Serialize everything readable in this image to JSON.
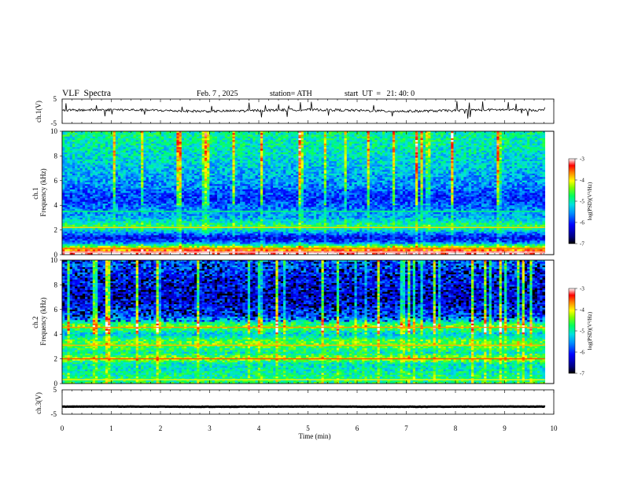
{
  "header": {
    "title": "VLF  Spectra",
    "date": "Feb. 7 , 2025",
    "station": "station= ATH",
    "start_ut": "start  UT  =   21: 40: 0"
  },
  "chart_data": [
    {
      "type": "line",
      "panel": "ch1-waveform",
      "ylabel": "ch.1(V)",
      "ylim": [
        -5,
        5
      ],
      "yticks": [
        "5",
        "-5"
      ],
      "xlim": [
        0,
        10
      ],
      "trace_color": "#000000",
      "baseline_v": 0.3
    },
    {
      "type": "heatmap",
      "panel": "ch1-spectrogram",
      "ylabel": "ch.1\nFrequency (kHz)",
      "ylim": [
        0,
        10
      ],
      "yticks": [
        "0",
        "2",
        "4",
        "6",
        "8",
        "10"
      ],
      "xlim": [
        0,
        10
      ],
      "data_end_min": 9.82,
      "colorbar": {
        "label": "log(PSD)(V²/Hz)",
        "range": [
          -7,
          -3
        ],
        "ticks": [
          "-3",
          "-4",
          "-5",
          "-6",
          "-7"
        ]
      },
      "band_levels_khz_logpsd": [
        [
          0.2,
          -3.3
        ],
        [
          0.6,
          -4.2
        ],
        [
          1.0,
          -5.8
        ],
        [
          1.4,
          -6.2
        ],
        [
          2.0,
          -5.1
        ],
        [
          2.3,
          -4.7
        ],
        [
          3.0,
          -5.4
        ],
        [
          3.5,
          -5.5
        ],
        [
          4.5,
          -6.0
        ],
        [
          5.5,
          -5.6
        ],
        [
          7.0,
          -5.3
        ],
        [
          9.0,
          -5.0
        ],
        [
          10.0,
          -4.9
        ]
      ]
    },
    {
      "type": "heatmap",
      "panel": "ch2-spectrogram",
      "ylabel": "ch.2\nFrequency (kHz)",
      "ylim": [
        0,
        10
      ],
      "yticks": [
        "0",
        "2",
        "4",
        "6",
        "8",
        "10"
      ],
      "xlim": [
        0,
        10
      ],
      "data_end_min": 9.82,
      "colorbar": {
        "label": "log(PSD)(V²/Hz)",
        "range": [
          -7,
          -3
        ],
        "ticks": [
          "-3",
          "-4",
          "-5",
          "-6",
          "-7"
        ]
      },
      "band_levels_khz_logpsd": [
        [
          0.3,
          -4.8
        ],
        [
          1.0,
          -5.0
        ],
        [
          1.6,
          -5.1
        ],
        [
          2.0,
          -4.2
        ],
        [
          2.5,
          -5.0
        ],
        [
          3.2,
          -4.5
        ],
        [
          3.5,
          -4.6
        ],
        [
          4.0,
          -5.3
        ],
        [
          4.6,
          -4.4
        ],
        [
          5.5,
          -5.8
        ],
        [
          7.0,
          -6.2
        ],
        [
          8.5,
          -6.0
        ],
        [
          10.0,
          -5.6
        ]
      ]
    },
    {
      "type": "line",
      "panel": "ch3-waveform",
      "ylabel": "ch.3(V)",
      "ylim": [
        -5,
        5
      ],
      "yticks": [
        "5",
        "-5"
      ],
      "xlim": [
        0,
        10
      ],
      "xlabel": "Time  (min)",
      "xticks": [
        "0",
        "1",
        "2",
        "3",
        "4",
        "5",
        "6",
        "7",
        "8",
        "9",
        "10"
      ],
      "trace_color": "#000000",
      "baseline_v": -1.9
    }
  ]
}
